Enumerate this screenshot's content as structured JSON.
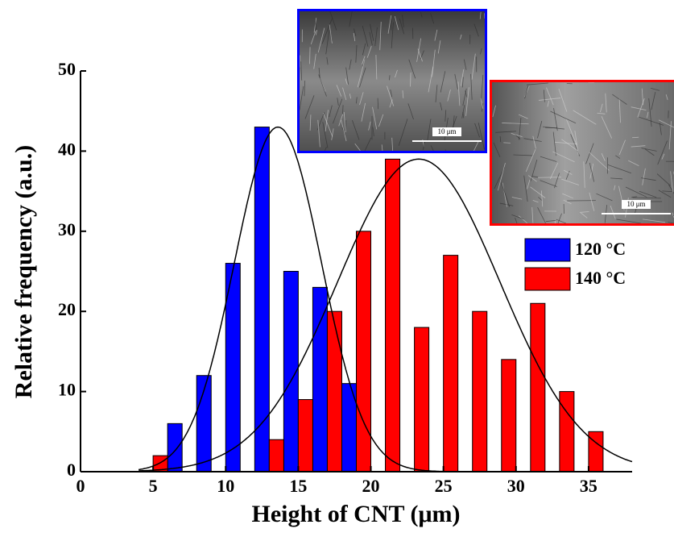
{
  "chart_data": {
    "type": "bar",
    "x_label": "Height of CNT  (μm)",
    "y_label": "Relative frequency (a.u.)",
    "xlim": [
      0,
      38
    ],
    "ylim": [
      0,
      50
    ],
    "xticks": [
      0,
      5,
      10,
      15,
      20,
      25,
      30,
      35
    ],
    "yticks": [
      0,
      10,
      20,
      30,
      40,
      50
    ],
    "bar_width": 1,
    "legend": "right",
    "series": [
      {
        "name": "120 °C",
        "color": "#0000ff",
        "x": [
          6.5,
          8.5,
          10.5,
          12.5,
          14.5,
          16.5,
          18.5
        ],
        "values": [
          6,
          12,
          26,
          43,
          25,
          23,
          11
        ],
        "fit": {
          "center": 13.6,
          "amplitude": 43,
          "width": 3.0
        }
      },
      {
        "name": "140 °C",
        "color": "#ff0000",
        "x": [
          5.5,
          13.5,
          15.5,
          17.5,
          19.5,
          21.5,
          23.5,
          25.5,
          27.5,
          29.5,
          31.5,
          33.5,
          35.5
        ],
        "values": [
          2,
          4,
          9,
          20,
          30,
          39,
          18,
          27,
          20,
          14,
          21,
          10,
          5
        ],
        "fit": {
          "center": 23.3,
          "amplitude": 39,
          "width": 5.6
        }
      }
    ],
    "insets": [
      {
        "color": "#0000ff",
        "scale_label": "10 μm"
      },
      {
        "color": "#ff0000",
        "scale_label": "10 μm"
      }
    ]
  }
}
